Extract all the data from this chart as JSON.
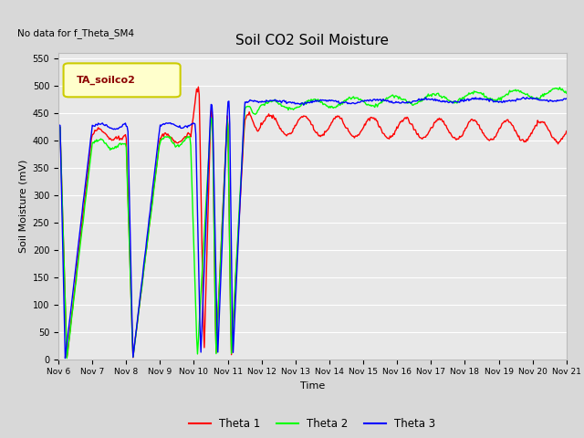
{
  "title": "Soil CO2 Soil Moisture",
  "ylabel": "Soil Moisture (mV)",
  "xlabel": "Time",
  "no_data_text": "No data for f_Theta_SM4",
  "legend_label": "TA_soilco2",
  "ylim": [
    0,
    560
  ],
  "yticks": [
    0,
    50,
    100,
    150,
    200,
    250,
    300,
    350,
    400,
    450,
    500,
    550
  ],
  "x_tick_labels": [
    "Nov 6",
    "Nov 7",
    "Nov 8",
    "Nov 9",
    "Nov 10",
    "Nov 11",
    "Nov 12",
    "Nov 13",
    "Nov 14",
    "Nov 15",
    "Nov 16",
    "Nov 17",
    "Nov 18",
    "Nov 19",
    "Nov 20",
    "Nov 21"
  ],
  "line_colors": [
    "red",
    "lime",
    "blue"
  ],
  "line_labels": [
    "Theta 1",
    "Theta 2",
    "Theta 3"
  ],
  "bg_color": "#d8d8d8",
  "plot_bg": "#e8e8e8",
  "legend_box_color": "#ffffcc",
  "legend_box_edge": "#cccc00",
  "figsize": [
    6.4,
    4.8
  ],
  "dpi": 100
}
